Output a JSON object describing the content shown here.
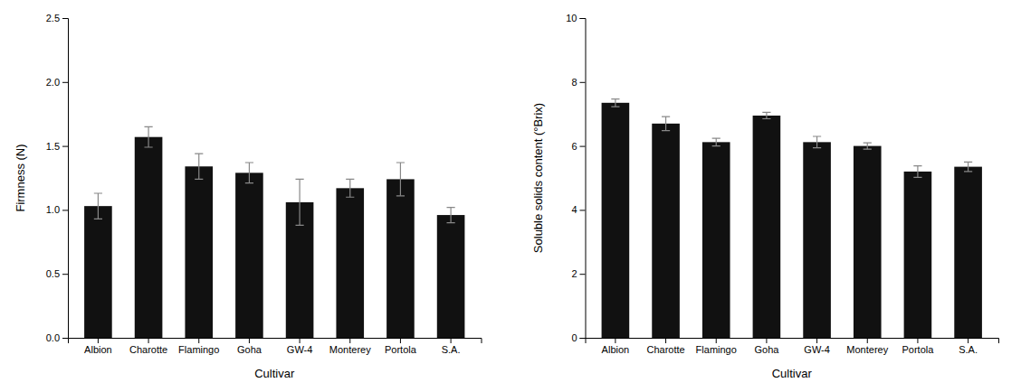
{
  "chart_data": [
    {
      "type": "bar",
      "categories": [
        "Albion",
        "Charotte",
        "Flamingo",
        "Goha",
        "GW-4",
        "Monterey",
        "Portola",
        "S.A."
      ],
      "values": [
        1.03,
        1.57,
        1.34,
        1.29,
        1.06,
        1.17,
        1.24,
        0.96
      ],
      "errors": [
        0.1,
        0.08,
        0.1,
        0.08,
        0.18,
        0.07,
        0.13,
        0.06
      ],
      "color": "#111111",
      "xlabel": "Cultivar",
      "ylabel": "Firmness (N)",
      "ylim": [
        0,
        2.5
      ],
      "yticks": [
        {
          "value": 0.0,
          "label": "0.0"
        },
        0.5,
        {
          "value": 1.0,
          "label": "1.0"
        },
        1.5,
        {
          "value": 2.0,
          "label": "2.0"
        },
        2.5
      ],
      "grid": false
    },
    {
      "type": "bar",
      "categories": [
        "Albion",
        "Charotte",
        "Flamingo",
        "Goha",
        "GW-4",
        "Monterey",
        "Portola",
        "S.A."
      ],
      "values": [
        7.35,
        6.7,
        6.12,
        6.95,
        6.12,
        6.0,
        5.2,
        5.35
      ],
      "errors": [
        0.12,
        0.22,
        0.12,
        0.1,
        0.18,
        0.1,
        0.18,
        0.15
      ],
      "color": "#111111",
      "xlabel": "Cultivar",
      "ylabel": "Soluble solids content (°Brix)",
      "ylim": [
        0,
        10
      ],
      "yticks": [
        0,
        2,
        4,
        6,
        8,
        10
      ],
      "grid": false
    }
  ]
}
